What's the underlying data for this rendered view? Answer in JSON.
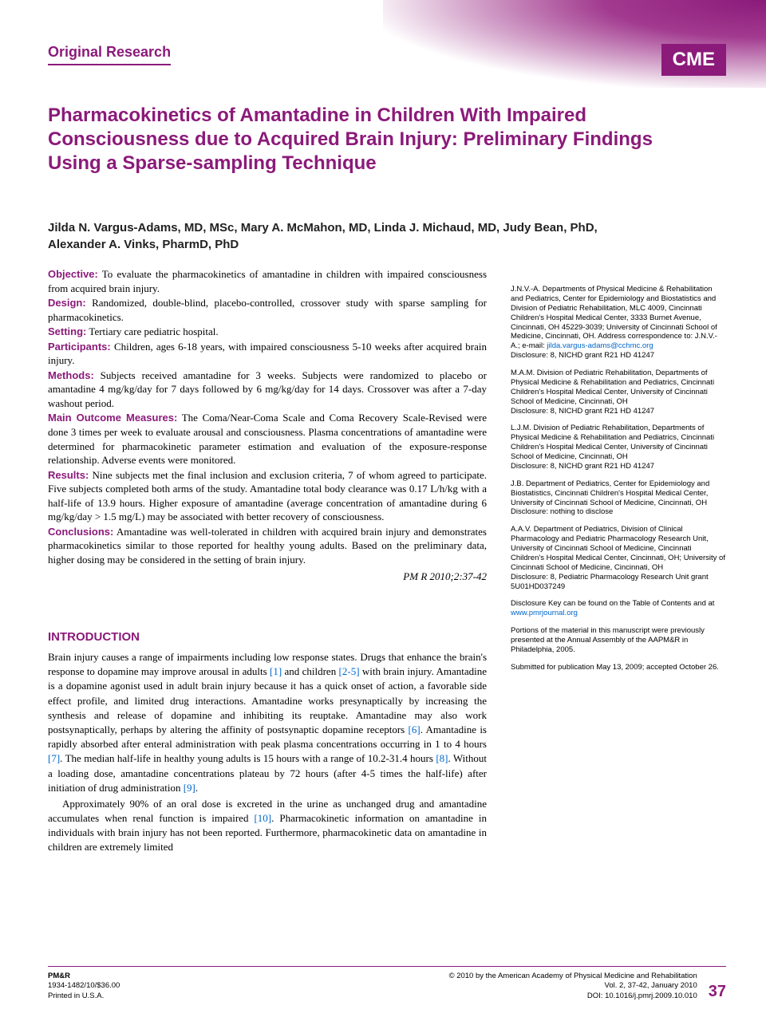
{
  "header": {
    "section_label": "Original Research",
    "cme_badge": "CME"
  },
  "title": "Pharmacokinetics of Amantadine in Children With Impaired Consciousness due to Acquired Brain Injury: Preliminary Findings Using a Sparse-sampling Technique",
  "authors": "Jilda N. Vargus-Adams, MD, MSc, Mary A. McMahon, MD, Linda J. Michaud, MD, Judy Bean, PhD, Alexander A. Vinks, PharmD, PhD",
  "abstract": {
    "objective_label": "Objective:",
    "objective": " To evaluate the pharmacokinetics of amantadine in children with impaired consciousness from acquired brain injury.",
    "design_label": "Design:",
    "design": " Randomized, double-blind, placebo-controlled, crossover study with sparse sampling for pharmacokinetics.",
    "setting_label": "Setting:",
    "setting": " Tertiary care pediatric hospital.",
    "participants_label": "Participants:",
    "participants": " Children, ages 6-18 years, with impaired consciousness 5-10 weeks after acquired brain injury.",
    "methods_label": "Methods:",
    "methods": " Subjects received amantadine for 3 weeks. Subjects were randomized to placebo or amantadine 4 mg/kg/day for 7 days followed by 6 mg/kg/day for 14 days. Crossover was after a 7-day washout period.",
    "outcomes_label": "Main Outcome Measures:",
    "outcomes": " The Coma/Near-Coma Scale and Coma Recovery Scale-Revised were done 3 times per week to evaluate arousal and consciousness. Plasma concentrations of amantadine were determined for pharmacokinetic parameter estimation and evaluation of the exposure-response relationship. Adverse events were monitored.",
    "results_label": "Results:",
    "results": " Nine subjects met the final inclusion and exclusion criteria, 7 of whom agreed to participate. Five subjects completed both arms of the study. Amantadine total body clearance was 0.17 L/h/kg with a half-life of 13.9 hours. Higher exposure of amantadine (average concentration of amantadine during 6 mg/kg/day > 1.5 mg/L) may be associated with better recovery of consciousness.",
    "conclusions_label": "Conclusions:",
    "conclusions": " Amantadine was well-tolerated in children with acquired brain injury and demonstrates pharmacokinetics similar to those reported for healthy young adults. Based on the preliminary data, higher dosing may be considered in the setting of brain injury.",
    "citation": "PM R 2010;2:37-42"
  },
  "intro": {
    "heading": "INTRODUCTION",
    "p1a": "Brain injury causes a range of impairments including low response states. Drugs that enhance the brain's response to dopamine may improve arousal in adults ",
    "ref1": "[1]",
    "p1b": " and children ",
    "ref25": "[2-5]",
    "p1c": " with brain injury. Amantadine is a dopamine agonist used in adult brain injury because it has a quick onset of action, a favorable side effect profile, and limited drug interactions. Amantadine works presynaptically by increasing the synthesis and release of dopamine and inhibiting its reuptake. Amantadine may also work postsynaptically, perhaps by altering the affinity of postsynaptic dopamine receptors ",
    "ref6": "[6]",
    "p1d": ". Amantadine is rapidly absorbed after enteral administration with peak plasma concentrations occurring in 1 to 4 hours ",
    "ref7": "[7]",
    "p1e": ". The median half-life in healthy young adults is 15 hours with a range of 10.2-31.4 hours ",
    "ref8": "[8]",
    "p1f": ". Without a loading dose, amantadine concentrations plateau by 72 hours (after 4-5 times the half-life) after initiation of drug administration ",
    "ref9": "[9]",
    "p1g": ".",
    "p2a": "Approximately 90% of an oral dose is excreted in the urine as unchanged drug and amantadine accumulates when renal function is impaired ",
    "ref10": "[10]",
    "p2b": ". Pharmacokinetic information on amantadine in individuals with brain injury has not been reported. Furthermore, pharmacokinetic data on amantadine in children are extremely limited"
  },
  "affiliations": {
    "a1": "J.N.V.-A. Departments of Physical Medicine & Rehabilitation and Pediatrics, Center for Epidemiology and Biostatistics and Division of Pediatric Rehabilitation, MLC 4009, Cincinnati Children's Hospital Medical Center, 3333 Burnet Avenue, Cincinnati, OH 45229-3039; University of Cincinnati School of Medicine, Cincinnati, OH. Address correspondence to: J.N.V.-A.; e-mail: ",
    "a1_email": "jilda.vargus-adams@cchmc.org",
    "a1_disc": "Disclosure: 8, NICHD grant R21 HD 41247",
    "a2": "M.A.M. Division of Pediatric Rehabilitation, Departments of Physical Medicine & Rehabilitation and Pediatrics, Cincinnati Children's Hospital Medical Center, University of Cincinnati School of Medicine, Cincinnati, OH",
    "a2_disc": "Disclosure: 8, NICHD grant R21 HD 41247",
    "a3": "L.J.M. Division of Pediatric Rehabilitation, Departments of Physical Medicine & Rehabilitation and Pediatrics, Cincinnati Children's Hospital Medical Center, University of Cincinnati School of Medicine, Cincinnati, OH",
    "a3_disc": "Disclosure: 8, NICHD grant R21 HD 41247",
    "a4": "J.B. Department of Pediatrics, Center for Epidemiology and Biostatistics, Cincinnati Children's Hospital Medical Center, University of Cincinnati School of Medicine, Cincinnati, OH",
    "a4_disc": "Disclosure: nothing to disclose",
    "a5": "A.A.V. Department of Pediatrics, Division of Clinical Pharmacology and Pediatric Pharmacology Research Unit, University of Cincinnati School of Medicine, Cincinnati Children's Hospital Medical Center, Cincinnati, OH; University of Cincinnati School of Medicine, Cincinnati, OH",
    "a5_disc": "Disclosure: 8, Pediatric Pharmacology Research Unit grant 5U01HD037249",
    "key": "Disclosure Key can be found on the Table of Contents and at ",
    "key_link": "www.pmrjournal.org",
    "portions": "Portions of the material in this manuscript were previously presented at the Annual Assembly of the AAPM&R in Philadelphia, 2005.",
    "submitted": "Submitted for publication May 13, 2009; accepted October 26."
  },
  "footer": {
    "journal": "PM&R",
    "issn": "1934-1482/10/$36.00",
    "printed": "Printed in U.S.A.",
    "copyright": "© 2010 by the American Academy of Physical Medicine and Rehabilitation",
    "vol": "Vol. 2, 37-42, January 2010",
    "doi": "DOI: 10.1016/j.pmrj.2009.10.010",
    "page": "37"
  },
  "colors": {
    "purple": "#8b1a7a",
    "link": "#0066cc"
  }
}
